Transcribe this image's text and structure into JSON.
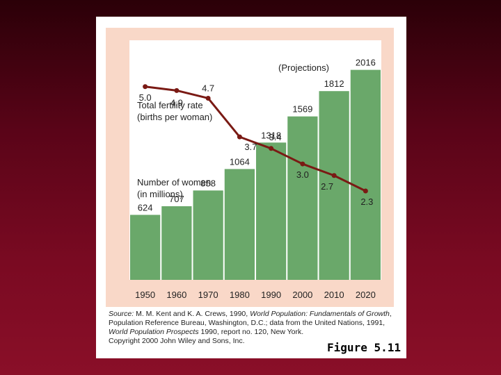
{
  "chart_data": {
    "type": "bar",
    "categories": [
      "1950",
      "1960",
      "1970",
      "1980",
      "1990",
      "2000",
      "2010",
      "2020"
    ],
    "series": [
      {
        "name": "Number of women\n(in millions)",
        "kind": "bar",
        "color": "#6aa86a",
        "values": [
          624,
          707,
          858,
          1064,
          1318,
          1569,
          1812,
          2016
        ]
      },
      {
        "name": "Total fertility rate\n(births per woman)",
        "kind": "line",
        "color": "#7a1a14",
        "values": [
          5.0,
          4.9,
          4.7,
          3.7,
          3.4,
          3.0,
          2.7,
          2.3
        ]
      }
    ],
    "annotations": [
      "(Projections)"
    ],
    "ylim_bars": [
      0,
      2300
    ],
    "ylim_line": [
      0,
      6.2
    ]
  },
  "source": {
    "prefix": "Source:",
    "authors": " M. M. Kent and K. A. Crews, 1990, ",
    "title1": "World Population: Fundamentals of Growth",
    "rest": ", Population Reference Bureau, Washington, D.C.; data from the United Nations, 1991, ",
    "title2": "World Population Prospects",
    "rest2": " 1990, report no. 120, New York.",
    "copyright": "Copyright 2000 John Wiley and Sons, Inc."
  },
  "figure_label": "Figure 5.11"
}
